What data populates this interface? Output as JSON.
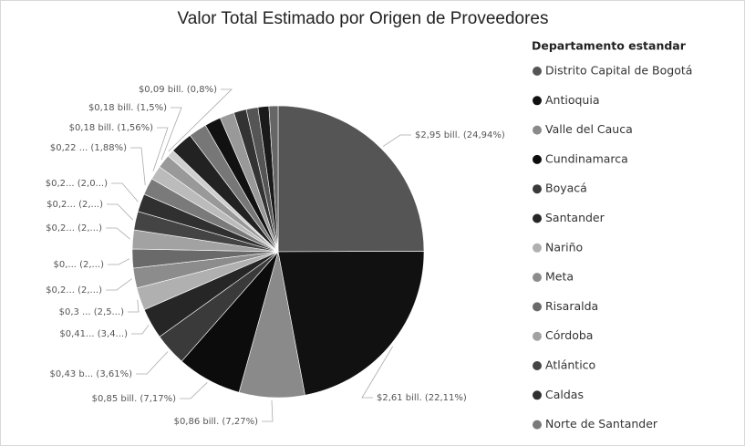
{
  "chart_data": {
    "type": "pie",
    "title": "Valor Total Estimado por Origen de Proveedores",
    "legend_title": "Departamento estandar",
    "legend": "right",
    "categories": [
      "Distrito Capital de Bogotá",
      "Antioquia",
      "Valle del Cauca",
      "Cundinamarca",
      "Boyacá",
      "Santander",
      "Nariño",
      "Meta",
      "Risaralda",
      "Córdoba",
      "Atlántico",
      "Caldas",
      "Norte de Santander",
      null,
      null,
      null,
      null,
      null,
      null,
      null,
      null,
      null,
      null,
      null
    ],
    "values": [
      24.94,
      22.11,
      7.27,
      7.17,
      3.61,
      3.4,
      2.5,
      2.2,
      2.1,
      2.1,
      2.05,
      2.0,
      1.88,
      1.56,
      1.5,
      0.8,
      2.5,
      2.0,
      1.8,
      1.6,
      1.4,
      1.3,
      1.2,
      1.01
    ],
    "value_labels": [
      "$2,95 bill. (24,94%)",
      "$2,61 bill. (22,11%)",
      "$0,86 bill. (7,27%)",
      "$0,85 bill. (7,17%)",
      "$0,43 b... (3,61%)",
      "$0,41... (3,4...)",
      "$0,3 ... (2,5...)",
      "$0,2... (2,...)",
      "$0,... (2,...)",
      "$0,2... (2,...)",
      "$0,2... (2,...)",
      "$0,2... (2,0...)",
      "$0,22 ... (1,88%)",
      "$0,18 bill. (1,56%)",
      "$0,18 bill. (1,5%)",
      "$0,09 bill. (0,8%)",
      null,
      null,
      null,
      null,
      null,
      null,
      null,
      null
    ],
    "colors": [
      "#555555",
      "#111111",
      "#8a8a8a",
      "#0c0c0c",
      "#3a3a3a",
      "#262626",
      "#b0b0b0",
      "#8c8c8c",
      "#6a6a6a",
      "#a2a2a2",
      "#444444",
      "#303030",
      "#7a7a7a",
      "#bbbbbb",
      "#999999",
      "#cfcfcf",
      "#222222",
      "#777777",
      "#111111",
      "#999999",
      "#333333",
      "#555555",
      "#1a1a1a",
      "#666666"
    ]
  }
}
